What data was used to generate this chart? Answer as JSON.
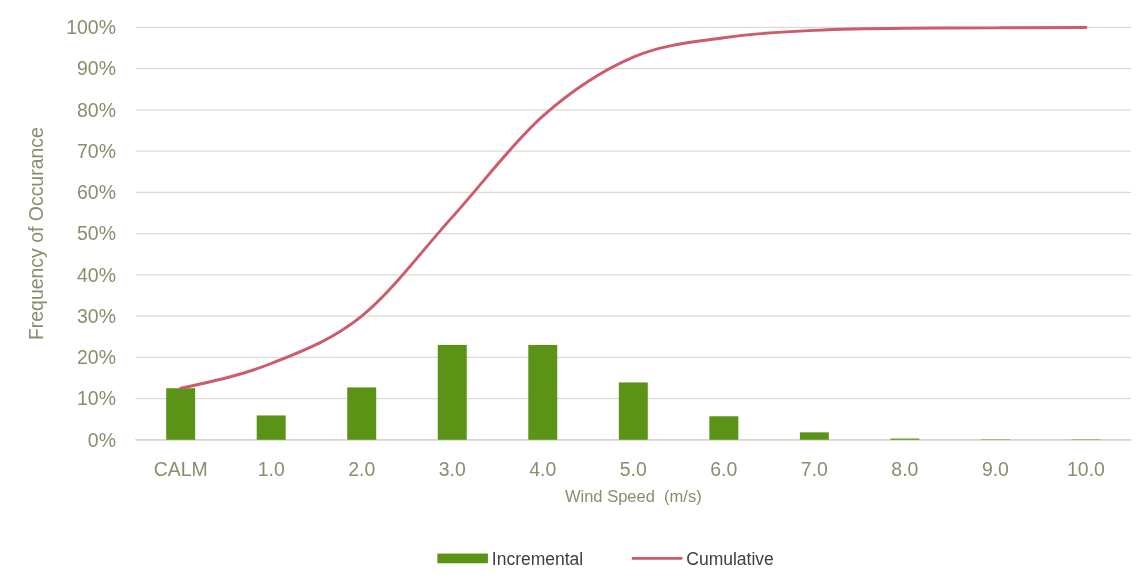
{
  "chart_data": {
    "type": "bar",
    "xlabel": "Wind Speed  (m/s)",
    "ylabel": "Frequency of Occurance",
    "categories": [
      "CALM",
      "1.0",
      "2.0",
      "3.0",
      "4.0",
      "5.0",
      "6.0",
      "7.0",
      "8.0",
      "9.0",
      "10.0"
    ],
    "series": [
      {
        "name": "Incremental",
        "color": "#5b9317",
        "values": [
          12.5,
          5.9,
          12.7,
          23,
          23,
          13.9,
          5.7,
          1.8,
          0.3,
          0.1,
          0.1
        ]
      },
      {
        "name": "Cumulative",
        "type": "line",
        "color": "#cc5b6b",
        "values": [
          12.5,
          18.5,
          30,
          54,
          78.5,
          92.8,
          97.5,
          99.3,
          99.8,
          99.9,
          100
        ]
      }
    ],
    "ylim": [
      0,
      100
    ],
    "yticks": [
      {
        "value": 0,
        "label": "0%"
      },
      {
        "value": 10,
        "label": "10%"
      },
      {
        "value": 20,
        "label": "20%"
      },
      {
        "value": 30,
        "label": "30%"
      },
      {
        "value": 40,
        "label": "40%"
      },
      {
        "value": 50,
        "label": "50%"
      },
      {
        "value": 60,
        "label": "60%"
      },
      {
        "value": 70,
        "label": "70%"
      },
      {
        "value": 80,
        "label": "80%"
      },
      {
        "value": 90,
        "label": "90%"
      },
      {
        "value": 100,
        "label": "100%"
      }
    ],
    "grid": "y",
    "legend": "bottom",
    "marker": "none",
    "line_style": "solid"
  }
}
